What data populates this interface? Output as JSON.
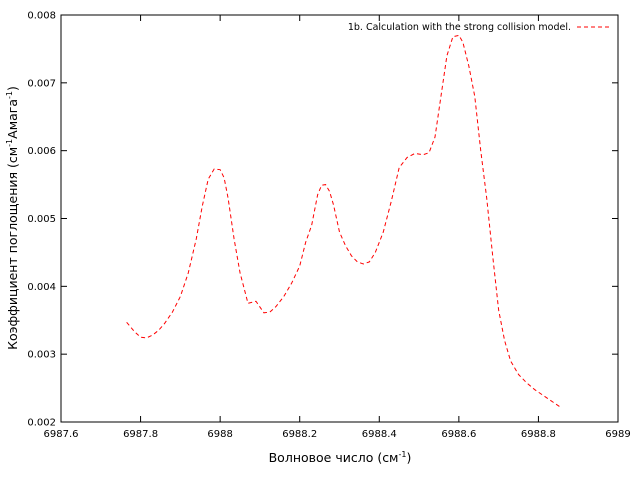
{
  "chart_data": {
    "type": "line",
    "title": "",
    "xlabel": "Волновое число (см",
    "xlabel_sup": "-1",
    "xlabel_end": ")",
    "ylabel_start": "Коэффициент поглощения (см",
    "ylabel_sup1": "-1",
    "ylabel_mid": "Амага",
    "ylabel_sup2": "-1",
    "ylabel_end": ")",
    "xlim": [
      6987.6,
      6989
    ],
    "ylim": [
      0.002,
      0.008
    ],
    "xticks": [
      "6987.6",
      "6987.8",
      "6988",
      "6988.2",
      "6988.4",
      "6988.6",
      "6988.8",
      "6989"
    ],
    "yticks": [
      "0.002",
      "0.003",
      "0.004",
      "0.005",
      "0.006",
      "0.007",
      "0.008"
    ],
    "grid": false,
    "legend_position": "top-right",
    "series": [
      {
        "name": "1b. Calculation with the strong collision model.",
        "color": "#ff0000",
        "style": "dashed",
        "x": [
          6987.765,
          6987.785,
          6987.8,
          6987.815,
          6987.83,
          6987.845,
          6987.86,
          6987.88,
          6987.9,
          6987.92,
          6987.94,
          6987.955,
          6987.97,
          6987.985,
          6988.0,
          6988.01,
          6988.02,
          6988.035,
          6988.05,
          6988.07,
          6988.09,
          6988.11,
          6988.125,
          6988.14,
          6988.16,
          6988.18,
          6988.2,
          6988.215,
          6988.23,
          6988.245,
          6988.255,
          6988.265,
          6988.275,
          6988.285,
          6988.3,
          6988.315,
          6988.33,
          6988.345,
          6988.36,
          6988.375,
          6988.39,
          6988.41,
          6988.43,
          6988.45,
          6988.47,
          6988.49,
          6988.51,
          6988.525,
          6988.54,
          6988.555,
          6988.57,
          6988.585,
          6988.6,
          6988.61,
          6988.625,
          6988.64,
          6988.655,
          6988.67,
          6988.685,
          6988.7,
          6988.715,
          6988.73,
          6988.75,
          6988.77,
          6988.79,
          6988.81,
          6988.83,
          6988.855
        ],
        "y": [
          0.00347,
          0.00333,
          0.00325,
          0.00324,
          0.00328,
          0.00335,
          0.00345,
          0.00362,
          0.00385,
          0.0042,
          0.0047,
          0.00518,
          0.00558,
          0.00573,
          0.00572,
          0.0056,
          0.0053,
          0.0047,
          0.0042,
          0.00375,
          0.00378,
          0.00361,
          0.00362,
          0.0037,
          0.00385,
          0.00405,
          0.0043,
          0.00465,
          0.0049,
          0.00535,
          0.00549,
          0.0055,
          0.0054,
          0.0052,
          0.0048,
          0.0046,
          0.00445,
          0.00436,
          0.00433,
          0.00436,
          0.0045,
          0.0048,
          0.00525,
          0.00575,
          0.0059,
          0.00596,
          0.00594,
          0.00597,
          0.0062,
          0.0068,
          0.0074,
          0.00768,
          0.0077,
          0.0076,
          0.00725,
          0.0068,
          0.006,
          0.0053,
          0.00445,
          0.00365,
          0.0032,
          0.0029,
          0.0027,
          0.00258,
          0.00248,
          0.0024,
          0.00232,
          0.00222
        ]
      }
    ]
  }
}
